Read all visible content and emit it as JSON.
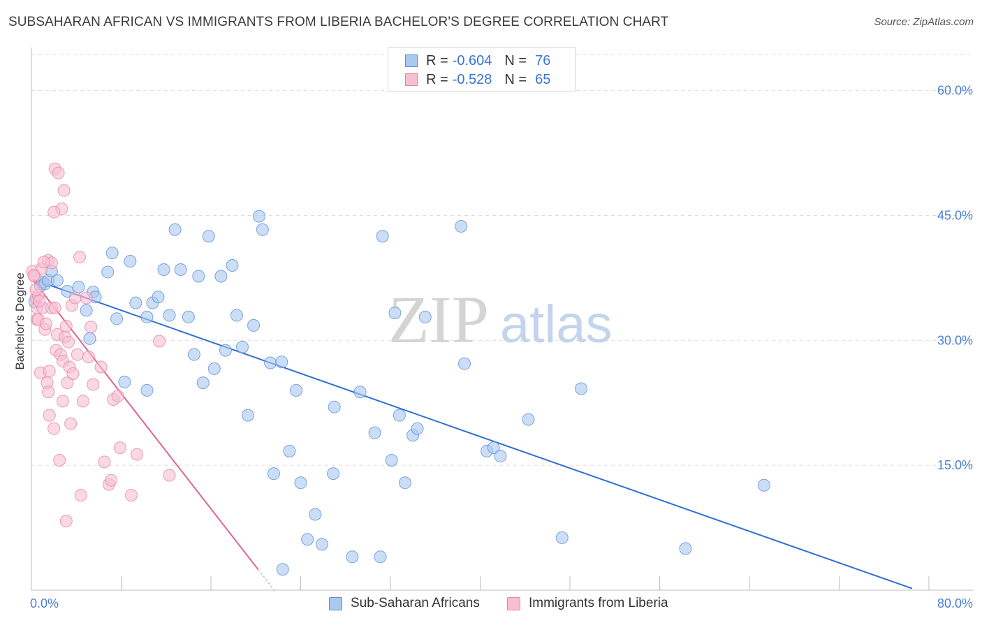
{
  "header": {
    "title": "SUBSAHARAN AFRICAN VS IMMIGRANTS FROM LIBERIA BACHELOR'S DEGREE CORRELATION CHART",
    "source": "Source: ZipAtlas.com"
  },
  "watermark": {
    "zip": "ZIP",
    "atlas": "atlas"
  },
  "legend": {
    "rows": [
      {
        "r_label": "R =",
        "r_value": "-0.604",
        "n_label": "N =",
        "n_value": "76"
      },
      {
        "r_label": "R =",
        "r_value": "-0.528",
        "n_label": "N =",
        "n_value": "65"
      }
    ]
  },
  "bottom_legend": {
    "series1": "Sub-Saharan Africans",
    "series2": "Immigrants from Liberia"
  },
  "colors": {
    "blue_fill": "#aac8f0",
    "blue_stroke": "#5b8fd8",
    "blue_line": "#2f6fd2",
    "pink_fill": "#f7bfd2",
    "pink_stroke": "#e683a6",
    "pink_line": "#e0648f",
    "tick_color": "#4a7fd4",
    "grid": "#dcdcdc"
  },
  "chart_data": {
    "type": "scatter",
    "title": "SUBSAHARAN AFRICAN VS IMMIGRANTS FROM LIBERIA BACHELOR'S DEGREE CORRELATION CHART",
    "xlabel": "",
    "ylabel": "Bachelor's Degree",
    "xlim": [
      0,
      80
    ],
    "ylim": [
      0,
      65
    ],
    "x_ticks": [
      "0.0%",
      "80.0%"
    ],
    "y_ticks": [
      {
        "value": 15,
        "label": "15.0%"
      },
      {
        "value": 30,
        "label": "30.0%"
      },
      {
        "value": 45,
        "label": "45.0%"
      },
      {
        "value": 60,
        "label": "60.0%"
      }
    ],
    "grid": true,
    "legend_position": "top-center",
    "series": [
      {
        "name": "Sub-Saharan Africans",
        "R": -0.604,
        "N": 76,
        "trend": {
          "x0": 0.2,
          "y0": 37.3,
          "x1": 78.5,
          "y1": 0.2
        },
        "points": [
          [
            0.8,
            36.5
          ],
          [
            1.0,
            37.0
          ],
          [
            1.2,
            36.8
          ],
          [
            1.5,
            37.2
          ],
          [
            1.8,
            38.3
          ],
          [
            2.3,
            37.2
          ],
          [
            3.2,
            35.9
          ],
          [
            4.2,
            36.4
          ],
          [
            4.9,
            33.6
          ],
          [
            5.2,
            30.2
          ],
          [
            5.5,
            35.8
          ],
          [
            5.7,
            35.2
          ],
          [
            6.8,
            38.2
          ],
          [
            7.2,
            40.5
          ],
          [
            7.6,
            32.6
          ],
          [
            8.3,
            25.0
          ],
          [
            8.8,
            39.5
          ],
          [
            9.3,
            34.5
          ],
          [
            10.3,
            32.8
          ],
          [
            10.3,
            24.0
          ],
          [
            10.8,
            34.5
          ],
          [
            11.3,
            35.2
          ],
          [
            11.8,
            38.5
          ],
          [
            12.3,
            33.0
          ],
          [
            12.8,
            43.3
          ],
          [
            13.3,
            38.5
          ],
          [
            14.0,
            32.8
          ],
          [
            14.5,
            28.3
          ],
          [
            14.9,
            37.7
          ],
          [
            15.3,
            24.9
          ],
          [
            15.8,
            42.5
          ],
          [
            16.3,
            26.6
          ],
          [
            16.9,
            37.7
          ],
          [
            17.3,
            28.8
          ],
          [
            17.9,
            39.0
          ],
          [
            18.3,
            33.0
          ],
          [
            18.8,
            29.2
          ],
          [
            19.3,
            21.0
          ],
          [
            19.8,
            31.8
          ],
          [
            20.3,
            44.9
          ],
          [
            20.6,
            43.3
          ],
          [
            21.3,
            27.3
          ],
          [
            21.6,
            14.0
          ],
          [
            22.3,
            27.4
          ],
          [
            23.0,
            16.7
          ],
          [
            23.6,
            24.0
          ],
          [
            24.0,
            12.9
          ],
          [
            24.6,
            6.1
          ],
          [
            25.3,
            9.1
          ],
          [
            25.9,
            5.5
          ],
          [
            26.9,
            14.0
          ],
          [
            27.0,
            22.0
          ],
          [
            28.6,
            4.0
          ],
          [
            29.3,
            23.8
          ],
          [
            30.6,
            18.9
          ],
          [
            31.1,
            4.0
          ],
          [
            31.3,
            42.5
          ],
          [
            32.1,
            15.6
          ],
          [
            32.4,
            33.3
          ],
          [
            32.8,
            21.0
          ],
          [
            33.3,
            12.9
          ],
          [
            34.0,
            18.6
          ],
          [
            34.4,
            19.4
          ],
          [
            35.1,
            32.8
          ],
          [
            38.3,
            43.7
          ],
          [
            38.6,
            27.2
          ],
          [
            40.6,
            16.7
          ],
          [
            41.2,
            17.1
          ],
          [
            41.8,
            16.1
          ],
          [
            44.3,
            20.5
          ],
          [
            47.3,
            6.3
          ],
          [
            49.0,
            24.2
          ],
          [
            58.3,
            5.0
          ],
          [
            65.3,
            12.6
          ],
          [
            22.4,
            2.5
          ],
          [
            0.3,
            34.6
          ]
        ]
      },
      {
        "name": "Immigrants from Liberia",
        "R": -0.528,
        "N": 65,
        "trend": {
          "x0": 0.1,
          "y0": 37.3,
          "x1": 20.2,
          "y1": 2.5
        },
        "points": [
          [
            0.1,
            38.3
          ],
          [
            0.3,
            37.7
          ],
          [
            0.4,
            35.1
          ],
          [
            0.5,
            33.9
          ],
          [
            0.5,
            32.5
          ],
          [
            0.6,
            32.5
          ],
          [
            0.6,
            35.4
          ],
          [
            0.8,
            26.1
          ],
          [
            0.9,
            38.6
          ],
          [
            1.0,
            33.9
          ],
          [
            1.2,
            31.3
          ],
          [
            1.3,
            32.0
          ],
          [
            1.4,
            24.9
          ],
          [
            1.5,
            39.6
          ],
          [
            1.5,
            23.8
          ],
          [
            1.6,
            21.0
          ],
          [
            1.8,
            33.9
          ],
          [
            1.8,
            39.3
          ],
          [
            2.0,
            19.4
          ],
          [
            2.1,
            33.9
          ],
          [
            2.1,
            50.6
          ],
          [
            2.2,
            28.8
          ],
          [
            2.3,
            30.7
          ],
          [
            2.4,
            50.1
          ],
          [
            2.5,
            15.6
          ],
          [
            2.6,
            28.3
          ],
          [
            2.7,
            45.8
          ],
          [
            2.8,
            27.5
          ],
          [
            2.8,
            22.7
          ],
          [
            2.9,
            48.0
          ],
          [
            3.0,
            30.4
          ],
          [
            3.1,
            8.3
          ],
          [
            3.1,
            31.7
          ],
          [
            3.2,
            24.9
          ],
          [
            3.3,
            29.8
          ],
          [
            3.4,
            26.8
          ],
          [
            3.6,
            34.2
          ],
          [
            3.7,
            26.0
          ],
          [
            3.9,
            35.1
          ],
          [
            4.1,
            28.3
          ],
          [
            4.3,
            40.0
          ],
          [
            4.4,
            11.4
          ],
          [
            4.6,
            22.7
          ],
          [
            4.9,
            35.1
          ],
          [
            5.1,
            28.0
          ],
          [
            5.3,
            31.6
          ],
          [
            5.5,
            24.7
          ],
          [
            6.2,
            26.8
          ],
          [
            6.5,
            15.4
          ],
          [
            6.9,
            12.7
          ],
          [
            7.1,
            13.2
          ],
          [
            7.3,
            22.9
          ],
          [
            7.7,
            23.3
          ],
          [
            7.9,
            17.1
          ],
          [
            8.9,
            11.4
          ],
          [
            9.4,
            16.3
          ],
          [
            11.4,
            29.9
          ],
          [
            12.3,
            13.8
          ],
          [
            0.2,
            37.8
          ],
          [
            1.1,
            39.4
          ],
          [
            2.0,
            45.4
          ],
          [
            0.4,
            36.1
          ],
          [
            0.7,
            34.7
          ],
          [
            1.6,
            26.3
          ],
          [
            3.5,
            20.0
          ]
        ]
      }
    ]
  }
}
